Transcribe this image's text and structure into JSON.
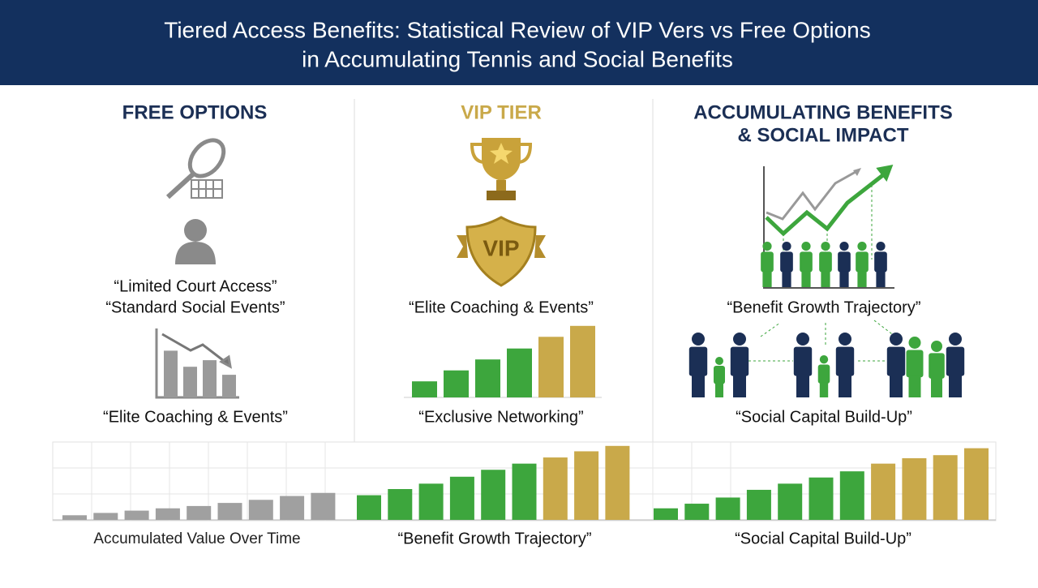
{
  "header": {
    "title_lines": [
      "Tiered Access Benefits: Statistical Review of VIP Vers vs Free Options",
      "in Accumulating Tennis and Social Benefits"
    ]
  },
  "free": {
    "heading": "FREE OPTIONS",
    "quotes": [
      "“Limited Court Access”",
      "“Standard Social Events”"
    ],
    "caption": "“Elite Coaching & Events”",
    "chart": {
      "values": [
        64,
        42,
        51,
        31
      ],
      "colors": [
        "#9a9a9a",
        "#9a9a9a",
        "#9a9a9a",
        "#9a9a9a"
      ],
      "ylim": [
        0,
        100
      ]
    }
  },
  "vip": {
    "heading": "VIP TIER",
    "badge": "VIP",
    "quote": "“Elite Coaching & Events”",
    "caption": "“Exclusive Networking”",
    "chart": {
      "values": [
        22,
        37,
        52,
        67,
        83,
        98
      ],
      "colors": [
        "#3da63d",
        "#3da63d",
        "#3da63d",
        "#3da63d",
        "#c9a94a",
        "#c9a94a"
      ],
      "ylim": [
        0,
        100
      ]
    }
  },
  "social": {
    "heading_lines": [
      "ACCUMULATING BENEFITS",
      "& SOCIAL IMPACT"
    ],
    "quote": "“Benefit Growth Trajectory”",
    "caption": "“Social Capital Build-Up”"
  },
  "bottom": {
    "ylim": [
      0,
      100
    ],
    "charts": [
      {
        "caption": "Accumulated Value Over Time",
        "values": [
          6,
          9,
          12,
          15,
          18,
          22,
          26,
          31,
          35
        ],
        "colors": [
          "#a0a0a0",
          "#a0a0a0",
          "#a0a0a0",
          "#a0a0a0",
          "#a0a0a0",
          "#a0a0a0",
          "#a0a0a0",
          "#a0a0a0",
          "#a0a0a0"
        ]
      },
      {
        "caption": "“Benefit Growth Trajectory”",
        "values": [
          32,
          40,
          47,
          56,
          65,
          73,
          81,
          89,
          96
        ],
        "colors": [
          "#3da63d",
          "#3da63d",
          "#3da63d",
          "#3da63d",
          "#3da63d",
          "#3da63d",
          "#c9a94a",
          "#c9a94a",
          "#c9a94a"
        ]
      },
      {
        "caption": "“Social Capital Build-Up”",
        "values": [
          15,
          21,
          29,
          39,
          47,
          55,
          63,
          73,
          80,
          84,
          93
        ],
        "colors": [
          "#3da63d",
          "#3da63d",
          "#3da63d",
          "#3da63d",
          "#3da63d",
          "#3da63d",
          "#3da63d",
          "#c9a94a",
          "#c9a94a",
          "#c9a94a",
          "#c9a94a"
        ]
      }
    ]
  }
}
